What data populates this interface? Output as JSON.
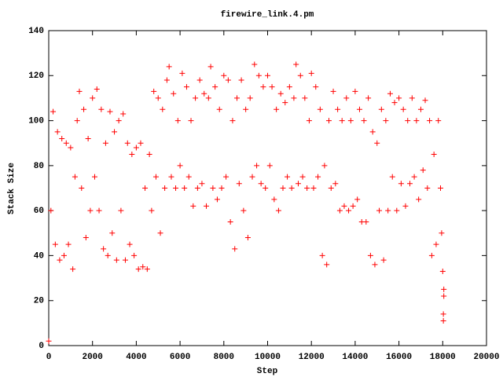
{
  "chart_data": {
    "type": "scatter",
    "title": "firewire_link.4.pm",
    "x_label": "Step",
    "y_label": "Stack Size",
    "xlim": [
      0,
      20000
    ],
    "ylim": [
      0,
      140
    ],
    "xticks": [
      0,
      2000,
      4000,
      6000,
      8000,
      10000,
      12000,
      14000,
      16000,
      18000,
      20000
    ],
    "yticks": [
      0,
      20,
      40,
      60,
      80,
      100,
      120,
      140
    ],
    "color": "#ff0000",
    "marker": "+",
    "x": [
      0,
      100,
      200,
      300,
      400,
      500,
      600,
      700,
      800,
      900,
      1000,
      1100,
      1200,
      1300,
      1400,
      1500,
      1600,
      1700,
      1800,
      1900,
      2000,
      2100,
      2200,
      2300,
      2400,
      2500,
      2600,
      2700,
      2800,
      2900,
      3000,
      3100,
      3200,
      3300,
      3400,
      3500,
      3600,
      3700,
      3800,
      3900,
      4000,
      4100,
      4200,
      4300,
      4400,
      4500,
      4600,
      4700,
      4800,
      4900,
      5000,
      5100,
      5200,
      5300,
      5400,
      5500,
      5600,
      5700,
      5800,
      5900,
      6000,
      6100,
      6200,
      6300,
      6400,
      6500,
      6600,
      6700,
      6800,
      6900,
      7000,
      7100,
      7200,
      7300,
      7400,
      7500,
      7600,
      7700,
      7800,
      7900,
      8000,
      8100,
      8200,
      8300,
      8400,
      8500,
      8600,
      8700,
      8800,
      8900,
      9000,
      9100,
      9200,
      9300,
      9400,
      9500,
      9600,
      9700,
      9800,
      9900,
      10000,
      10100,
      10200,
      10300,
      10400,
      10500,
      10600,
      10700,
      10800,
      10900,
      11000,
      11100,
      11200,
      11300,
      11400,
      11500,
      11600,
      11700,
      11800,
      11900,
      12000,
      12100,
      12200,
      12300,
      12400,
      12500,
      12600,
      12700,
      12800,
      12900,
      13000,
      13100,
      13200,
      13300,
      13400,
      13500,
      13600,
      13700,
      13800,
      13900,
      14000,
      14100,
      14200,
      14300,
      14400,
      14500,
      14600,
      14700,
      14800,
      14900,
      15000,
      15100,
      15200,
      15300,
      15400,
      15500,
      15600,
      15700,
      15800,
      15900,
      16000,
      16100,
      16200,
      16300,
      16400,
      16500,
      16600,
      16700,
      16800,
      16900,
      17000,
      17100,
      17200,
      17300,
      17400,
      17500,
      17600,
      17700,
      17800,
      17900,
      18000,
      17950,
      18030,
      18030,
      18050,
      18050
    ],
    "values": [
      2,
      60,
      104,
      45,
      95,
      38,
      92,
      40,
      90,
      45,
      88,
      34,
      75,
      100,
      113,
      70,
      105,
      48,
      92,
      60,
      110,
      75,
      114,
      60,
      105,
      43,
      90,
      40,
      104,
      50,
      95,
      38,
      100,
      60,
      103,
      38,
      90,
      45,
      85,
      40,
      88,
      34,
      90,
      35,
      70,
      34,
      85,
      60,
      113,
      75,
      110,
      50,
      105,
      70,
      118,
      124,
      75,
      112,
      70,
      100,
      80,
      121,
      70,
      115,
      75,
      100,
      62,
      110,
      70,
      118,
      72,
      112,
      62,
      110,
      124,
      70,
      115,
      65,
      105,
      70,
      120,
      75,
      118,
      55,
      100,
      43,
      110,
      72,
      118,
      60,
      105,
      48,
      110,
      75,
      125,
      80,
      120,
      72,
      115,
      70,
      120,
      80,
      115,
      65,
      105,
      60,
      112,
      70,
      108,
      75,
      115,
      70,
      110,
      125,
      72,
      120,
      75,
      110,
      70,
      100,
      121,
      70,
      115,
      75,
      105,
      40,
      80,
      36,
      100,
      70,
      113,
      72,
      105,
      60,
      100,
      62,
      110,
      60,
      100,
      62,
      113,
      65,
      105,
      55,
      100,
      55,
      110,
      40,
      95,
      36,
      90,
      60,
      105,
      38,
      100,
      60,
      112,
      75,
      108,
      60,
      110,
      72,
      105,
      62,
      100,
      72,
      110,
      75,
      100,
      65,
      105,
      78,
      109,
      70,
      100,
      40,
      85,
      45,
      100,
      70,
      33,
      50,
      14,
      11,
      25,
      22
    ]
  }
}
